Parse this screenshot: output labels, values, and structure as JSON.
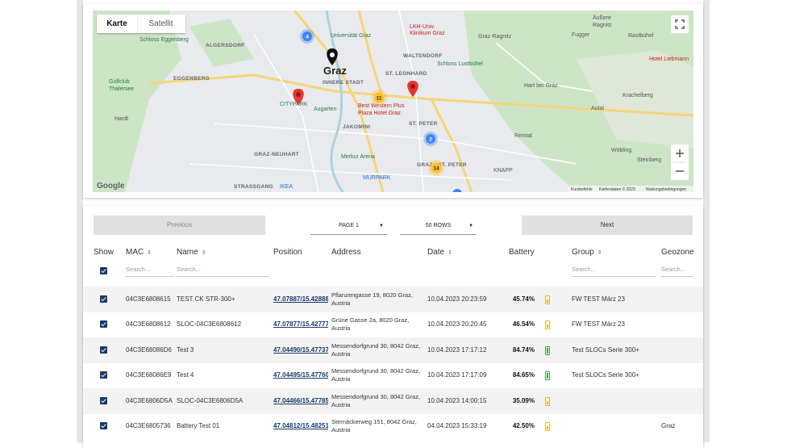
{
  "map": {
    "tabs": [
      "Karte",
      "Satellit"
    ],
    "labels": [
      "Universität Graz",
      "LKH-Univ.",
      "Klinikum Graz",
      "Graz-Ragnitz",
      "Äußere",
      "Ragnitz",
      "Fugger",
      "Rastbühel",
      "Hotel Liebmann",
      "ALGERSDORF",
      "Schloss Eggenberg",
      "WALTENDORF",
      "Schloss Lustbühel",
      "EGGENBERG",
      "Graz",
      "INNERE STADT",
      "ST. LEONHARD",
      "Golfclub",
      "Thalersee",
      "Hart bei Graz",
      "Autal",
      "Krachelberg",
      "CITYPARK",
      "Augarten",
      "Best Western Plus",
      "Plaza Hotel Graz",
      "Hardt",
      "JAKOMINI",
      "ST. PETER",
      "Reintal",
      "GRAZ-NEUHART",
      "Merkur Arena",
      "GRAZ - ST. PETER",
      "Wöbling",
      "Steinberg",
      "KNAPP",
      "MURPARK",
      "STRASSGANG",
      "IKEA"
    ],
    "clusters": [
      "4",
      "11",
      "2",
      "14"
    ],
    "logo": "Google",
    "footer": [
      "Kurzbefehle",
      "Kartendaten © 2023",
      "Nutzungsbedingungen"
    ]
  },
  "table": {
    "previous": "Previous",
    "page": "PAGE 1",
    "rows_per_page": "50 ROWS",
    "next": "Next",
    "headers": [
      "Show",
      "MAC",
      "Name",
      "Position",
      "Address",
      "Date",
      "Battery",
      "Group",
      "Geozone"
    ],
    "search": "Search...",
    "rows": [
      {
        "mac": "04C3E6808615",
        "name": "TEST CK STR-300+",
        "position": "47.07887/15.42888",
        "address": "Pflanzengasse 19, 8020 Graz, Austria",
        "date": "10.04.2023 20:23:59",
        "battery": "45.74%",
        "group": "FW TEST März 23"
      },
      {
        "mac": "04C3E6808612",
        "name": "SLOC-04C3E6808612",
        "position": "47.07877/15.42777",
        "address": "Grüne Gasse 2a, 8020 Graz, Austria",
        "date": "10.04.2023 20:20:45",
        "battery": "46.54%",
        "group": "FW TEST März 23"
      },
      {
        "mac": "04C3E68086D6",
        "name": "Test 3",
        "position": "47.04490/15.47737",
        "address": "Messendorfgrund 30, 8042 Graz, Austria",
        "date": "10.04.2023 17:17:12",
        "battery": "84.74%",
        "group": "Test SLOCs Serie 300+"
      },
      {
        "mac": "04C3E68086E9",
        "name": "Test 4",
        "position": "47.04495/15.47760",
        "address": "Messendorfgrund 30, 8042 Graz, Austria",
        "date": "10.04.2023 17:17:09",
        "battery": "84.65%",
        "group": "Test SLOCs Serie 300+"
      },
      {
        "mac": "04C3E6806D5A",
        "name": "SLOC-04C3E6806D5A",
        "position": "47.04466/15.47785",
        "address": "Messendorfgrund 30, 8042 Graz, Austria",
        "date": "10.04.2023 14:00:15",
        "battery": "35.09%"
      },
      {
        "mac": "04C3E6805736",
        "name": "Battery Test 01",
        "position": "47.04812/15.48251",
        "address": "Sternäckerweg 151, 8042 Graz, Austria",
        "date": "04.04.2023 15:33:19",
        "battery": "42.50%",
        "geozone": "Graz"
      }
    ]
  }
}
